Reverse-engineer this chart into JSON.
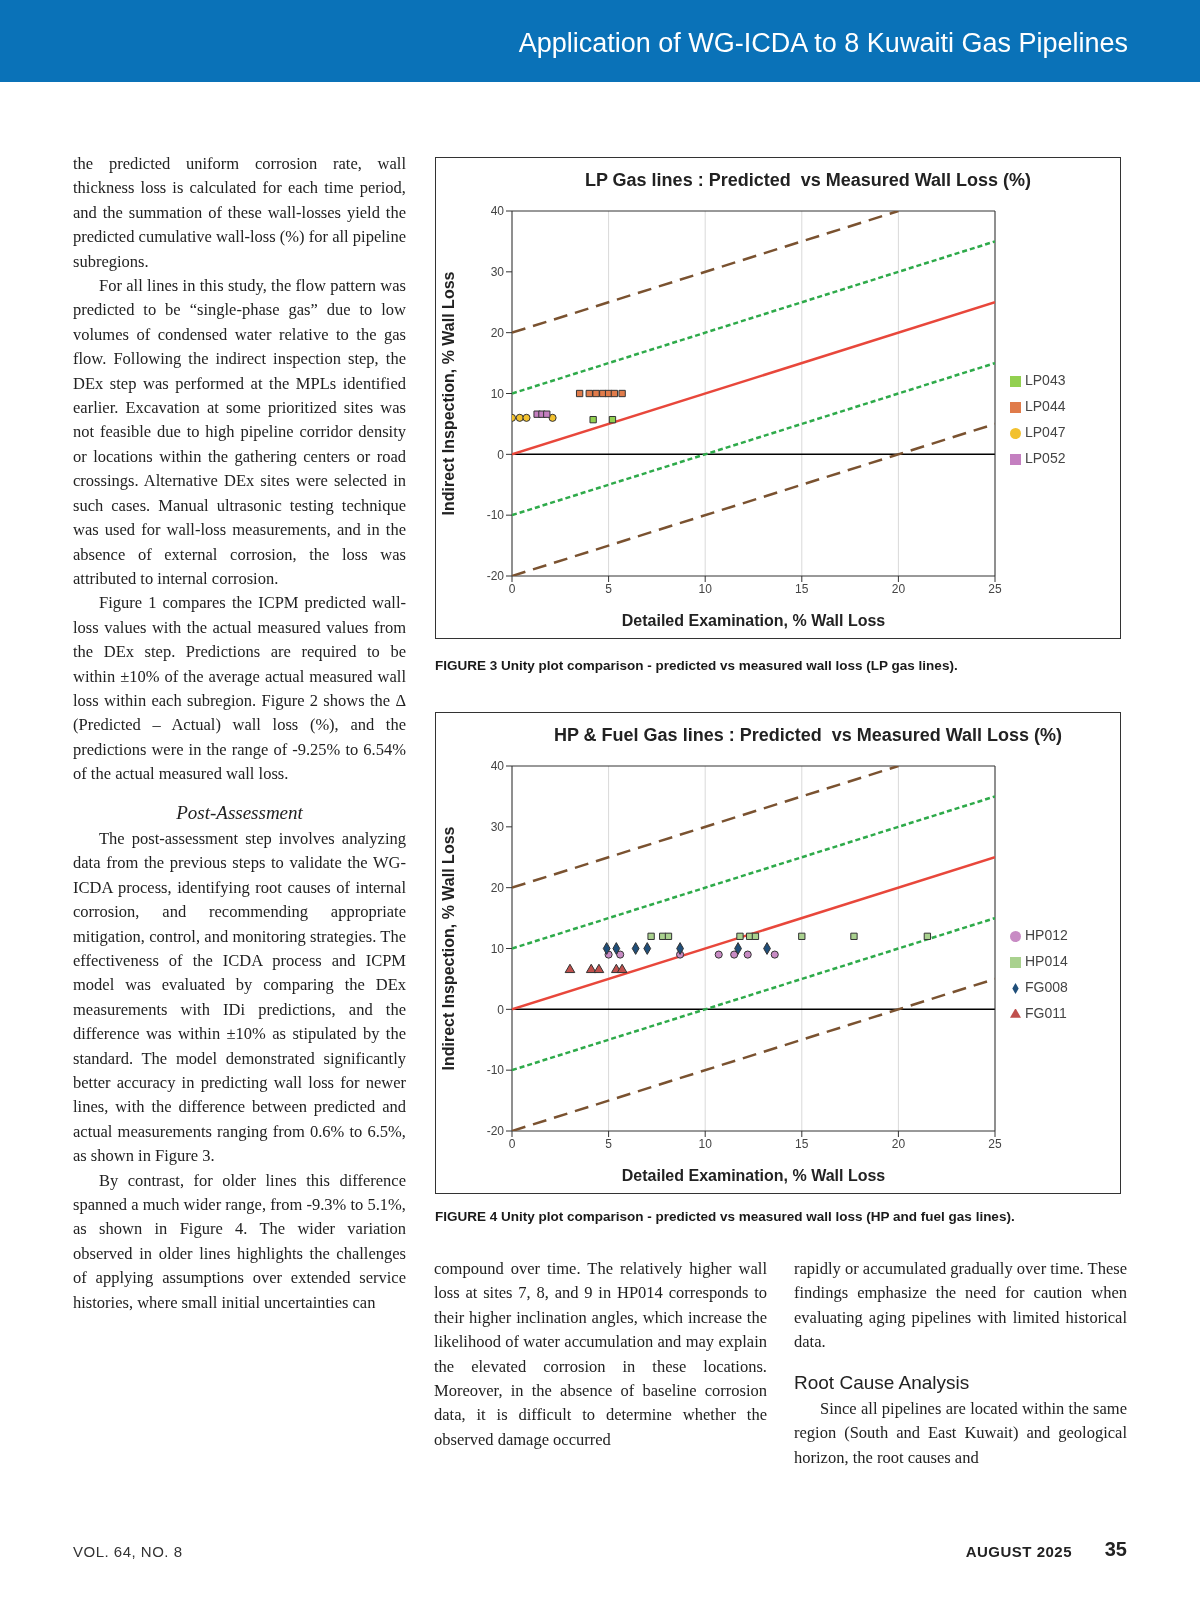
{
  "chart_data": [
    {
      "type": "scatter",
      "title": "LP Gas lines : Predicted  vs Measured Wall Loss (%)",
      "xlabel": "Detailed Examination, % Wall Loss",
      "ylabel": "Indirect Inspection, % Wall Loss",
      "xlim": [
        0,
        25
      ],
      "xticks": [
        0,
        5,
        10,
        15,
        20,
        25
      ],
      "ylim": [
        -20,
        40
      ],
      "yticks": [
        -20,
        -10,
        0,
        10,
        20,
        30,
        40
      ],
      "grid": "x",
      "legend": "right",
      "ref_lines": [
        {
          "axis": "y",
          "value": 0,
          "color": "#000000"
        }
      ],
      "series": [
        {
          "type": "line",
          "color": "#7a5230",
          "line_style": "dashed",
          "x": [
            0,
            20
          ],
          "values": [
            20,
            40
          ]
        },
        {
          "type": "line",
          "color": "#2eaa4a",
          "line_style": "dotted",
          "x": [
            0,
            25
          ],
          "values": [
            10,
            35
          ]
        },
        {
          "type": "line",
          "color": "#e8473b",
          "line_style": "solid",
          "x": [
            0,
            25
          ],
          "values": [
            0,
            25
          ]
        },
        {
          "type": "line",
          "color": "#2eaa4a",
          "line_style": "dotted",
          "x": [
            0,
            25
          ],
          "values": [
            -10,
            15
          ]
        },
        {
          "type": "line",
          "color": "#7a5230",
          "line_style": "dashed",
          "x": [
            0,
            25
          ],
          "values": [
            -20,
            5
          ]
        },
        {
          "name": "LP043",
          "color": "#92d050",
          "marker": "square",
          "x": [
            4.2,
            5.2
          ],
          "values": [
            5.7,
            5.7
          ]
        },
        {
          "name": "LP044",
          "color": "#e07b4a",
          "marker": "square",
          "x": [
            3.5,
            4.0,
            4.35,
            4.7,
            5.0,
            5.3,
            5.7
          ],
          "values": [
            10,
            10,
            10,
            10,
            10,
            10,
            10
          ]
        },
        {
          "name": "LP047",
          "color": "#f2c12e",
          "marker": "circle",
          "x": [
            0,
            0.4,
            0.75,
            2.1
          ],
          "values": [
            6,
            6,
            6,
            6
          ]
        },
        {
          "name": "LP052",
          "color": "#c47fc0",
          "marker": "square",
          "x": [
            1.3,
            1.55,
            1.8
          ],
          "values": [
            6.6,
            6.6,
            6.6
          ]
        }
      ],
      "annotations": [
        "Application of WG-ICDA to 8 Kuwaiti Gas Pipelines",
        "FIGURE 3  Unity plot comparison - predicted vs measured wall loss (LP gas lines).",
        "the predicted uniform corrosion rate, wall thickness loss is calculated for each time period, and the summation of these wall-losses yield the predicted cumulative wall-loss (%) for all pipeline subregions.",
        "For all lines in this study, the flow pattern was predicted to be “single-phase gas” due to low volumes of condensed water relative to the gas flow. Following the indirect inspection step, the DEx step was performed at the MPLs identified earlier. Excavation at some prioritized sites was not feasible due to high pipeline corridor density or locations within the gathering centers or road crossings. Alternative DEx sites were selected in such cases. Manual ultrasonic testing technique was used for wall-loss measurements, and in the absence of external corrosion, the loss was attributed to internal corrosion.",
        "Figure 1 compares the ICPM predicted wall-loss values with the actual measured values from the DEx step. Predictions are required to be within ±10% of the average actual measured wall loss within each subregion. Figure 2 shows the Δ (Predicted – Actual) wall loss (%), and the predictions were in the range of -9.25% to 6.54% of the actual measured wall loss.",
        "Post-Assessment",
        "The post-assessment step involves analyzing data from the previous steps to validate the WG-ICDA process, identifying root causes of internal corrosion, and recommending appropriate mitigation, control, and monitoring strategies. The effectiveness of the ICDA process and ICPM model was evaluated by comparing the DEx measurements with IDi predictions, and the difference was within ±10% as stipulated by the standard. The model demonstrated significantly better accuracy in predicting wall loss for newer lines, with the difference between predicted and actual measurements ranging from 0.6% to 6.5%, as shown in Figure 3.",
        "By contrast, for older lines this difference spanned a much wider range, from -9.3% to 5.1%, as shown in Figure 4. The wider variation observed in older lines highlights the challenges of applying assumptions over extended service histories, where small initial uncertainties can"
      ]
    },
    {
      "type": "scatter",
      "title": "HP & Fuel Gas lines : Predicted  vs Measured Wall Loss (%)",
      "xlabel": "Detailed Examination, % Wall Loss",
      "ylabel": "Indirect Inspection, % Wall Loss",
      "xlim": [
        0,
        25
      ],
      "xticks": [
        0,
        5,
        10,
        15,
        20,
        25
      ],
      "ylim": [
        -20,
        40
      ],
      "yticks": [
        -20,
        -10,
        0,
        10,
        20,
        30,
        40
      ],
      "grid": "x",
      "legend": "right",
      "ref_lines": [
        {
          "axis": "y",
          "value": 0,
          "color": "#000000"
        }
      ],
      "series": [
        {
          "type": "line",
          "color": "#7a5230",
          "line_style": "dashed",
          "x": [
            0,
            20
          ],
          "values": [
            20,
            40
          ]
        },
        {
          "type": "line",
          "color": "#2eaa4a",
          "line_style": "dotted",
          "x": [
            0,
            25
          ],
          "values": [
            10,
            35
          ]
        },
        {
          "type": "line",
          "color": "#e8473b",
          "line_style": "solid",
          "x": [
            0,
            25
          ],
          "values": [
            0,
            25
          ]
        },
        {
          "type": "line",
          "color": "#2eaa4a",
          "line_style": "dotted",
          "x": [
            0,
            25
          ],
          "values": [
            -10,
            15
          ]
        },
        {
          "type": "line",
          "color": "#7a5230",
          "line_style": "dashed",
          "x": [
            0,
            25
          ],
          "values": [
            -20,
            5
          ]
        },
        {
          "name": "HP012",
          "color": "#c88bc4",
          "marker": "circle",
          "x": [
            5.0,
            5.6,
            8.7,
            10.7,
            11.5,
            12.2,
            13.6
          ],
          "values": [
            9,
            9,
            9,
            9,
            9,
            9,
            9
          ]
        },
        {
          "name": "HP014",
          "color": "#a9d18e",
          "marker": "square",
          "x": [
            7.2,
            7.8,
            8.1,
            11.8,
            12.3,
            12.6,
            15.0,
            17.7,
            21.5
          ],
          "values": [
            12,
            12,
            12,
            12,
            12,
            12,
            12,
            12,
            12
          ]
        },
        {
          "name": "FG008",
          "color": "#1f4e79",
          "marker": "diamond",
          "x": [
            4.9,
            5.4,
            6.4,
            7.0,
            8.7,
            11.7,
            13.2
          ],
          "values": [
            10,
            10,
            10,
            10,
            10,
            10,
            10
          ]
        },
        {
          "name": "FG011",
          "color": "#c0504d",
          "marker": "triangle",
          "x": [
            3.0,
            4.1,
            4.5,
            5.4,
            5.7
          ],
          "values": [
            6.5,
            6.5,
            6.5,
            6.5,
            6.5
          ]
        }
      ],
      "annotations": [
        "FIGURE 4  Unity plot comparison - predicted vs measured wall loss (HP and fuel gas lines).",
        "compound over time. The relatively higher wall loss at sites 7, 8, and 9 in HP014 corresponds to their higher inclination angles, which increase the likelihood of water accumulation and may explain the elevated corrosion in these locations. Moreover, in the absence of baseline corrosion data, it is difficult to determine whether the observed damage occurred",
        "rapidly or accumulated gradually over time. These findings emphasize the need for caution when evaluating aging pipelines with limited historical data.",
        "Root Cause Analysis",
        "Since all pipelines are located within the same region (South and East Kuwait) and geological horizon, the root causes and",
        "VOL. 64, NO. 8",
        "AUGUST 2025",
        "35"
      ]
    }
  ]
}
